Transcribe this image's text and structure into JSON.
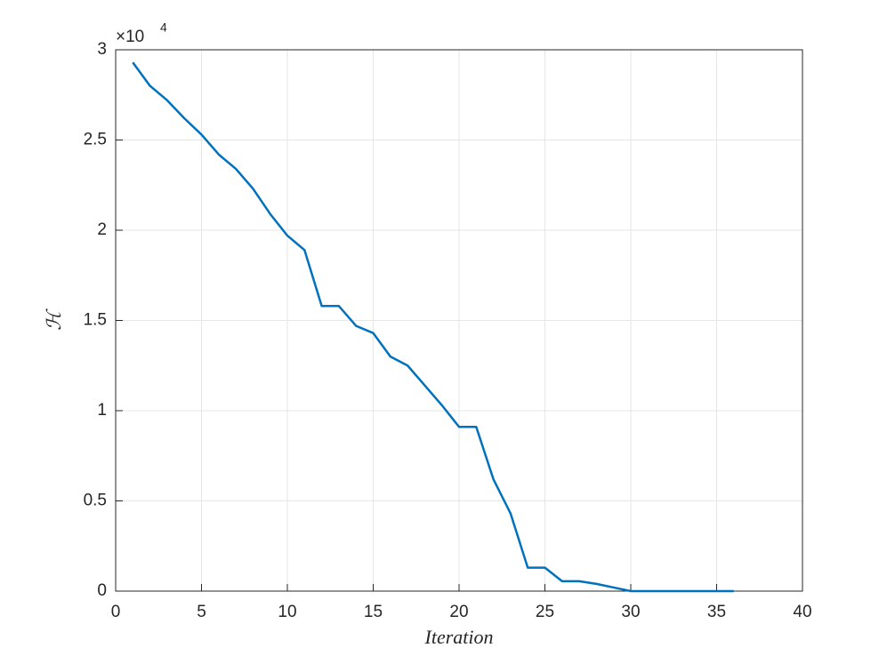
{
  "chart_data": {
    "type": "line",
    "xlabel": "Iteration",
    "ylabel": "ℋ",
    "y_multiplier": {
      "base": "×10",
      "exponent": "4"
    },
    "x": [
      1,
      2,
      3,
      4,
      5,
      6,
      7,
      8,
      9,
      10,
      11,
      12,
      13,
      14,
      15,
      16,
      17,
      18,
      19,
      20,
      21,
      22,
      23,
      24,
      25,
      26,
      27,
      28,
      29,
      30,
      31,
      32,
      33,
      34,
      35,
      36
    ],
    "series": [
      {
        "color": "#0072bd",
        "values": [
          2.93,
          2.8,
          2.72,
          2.62,
          2.53,
          2.42,
          2.34,
          2.23,
          2.09,
          1.97,
          1.89,
          1.58,
          1.58,
          1.47,
          1.43,
          1.3,
          1.25,
          1.14,
          1.03,
          0.91,
          0.91,
          0.62,
          0.43,
          0.13,
          0.13,
          0.055,
          0.055,
          0.04,
          0.02,
          0,
          0,
          0,
          0,
          0,
          0,
          0
        ]
      }
    ],
    "xlim": [
      0,
      40
    ],
    "xticks": [
      0,
      5,
      10,
      15,
      20,
      25,
      30,
      35,
      40
    ],
    "ylim": [
      0,
      3
    ],
    "yticks": [
      0,
      0.5,
      1,
      1.5,
      2,
      2.5,
      3
    ],
    "grid": true
  }
}
